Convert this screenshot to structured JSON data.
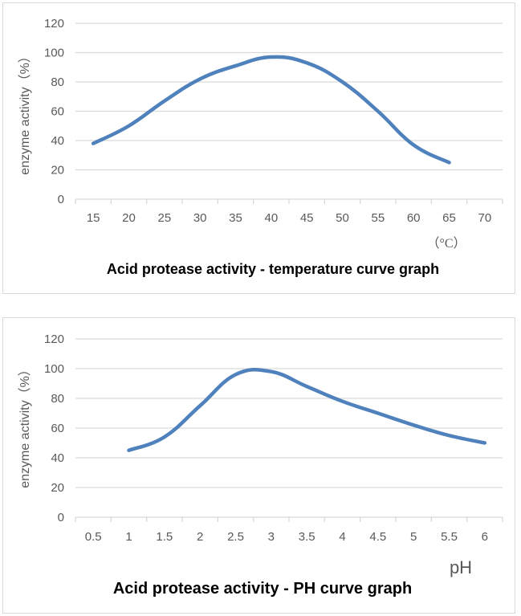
{
  "chart_data": [
    {
      "type": "line",
      "title": "Acid protease activity - temperature curve graph",
      "xlabel": "（°C）",
      "ylabel": "enzyme activity（%）",
      "categories": [
        "15",
        "20",
        "25",
        "30",
        "35",
        "40",
        "45",
        "50",
        "55",
        "60",
        "65",
        "70"
      ],
      "series": [
        {
          "name": "enzyme activity",
          "values": [
            38,
            50,
            67,
            82,
            91,
            97,
            93,
            80,
            60,
            37,
            25,
            null
          ],
          "color": "#4f81bd"
        }
      ],
      "yticks": [
        "0",
        "20",
        "40",
        "60",
        "80",
        "100",
        "120"
      ],
      "ylim": [
        0,
        120
      ],
      "grid": true,
      "smooth": true
    },
    {
      "type": "line",
      "title": "Acid protease activity - PH curve graph",
      "xlabel": "pH",
      "ylabel": "enzyme activity（%）",
      "categories": [
        "0.5",
        "1",
        "1.5",
        "2",
        "2.5",
        "3",
        "3.5",
        "4",
        "4.5",
        "5",
        "5.5",
        "6"
      ],
      "series": [
        {
          "name": "enzyme activity",
          "values": [
            null,
            45,
            54,
            75,
            96,
            98,
            88,
            78,
            70,
            62,
            55,
            50
          ],
          "color": "#4f81bd"
        }
      ],
      "yticks": [
        "0",
        "20",
        "40",
        "60",
        "80",
        "100",
        "120"
      ],
      "ylim": [
        0,
        120
      ],
      "grid": true,
      "smooth": true
    }
  ]
}
